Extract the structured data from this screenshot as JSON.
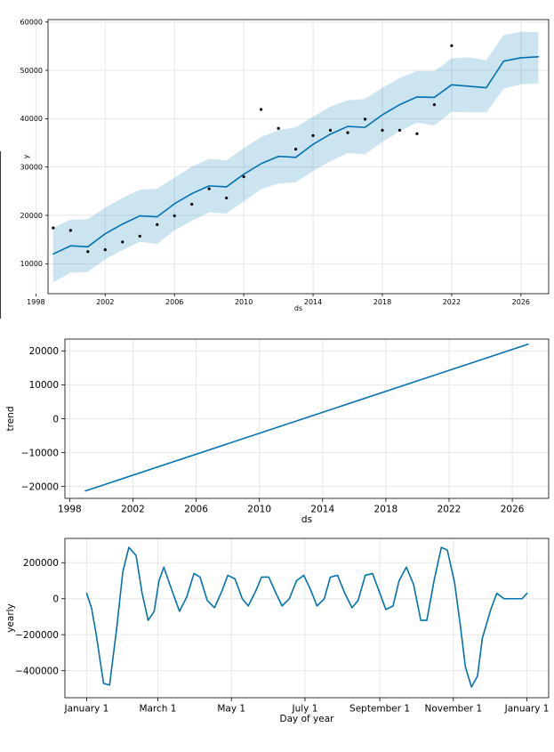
{
  "chart_data": [
    {
      "type": "line",
      "xlabel": "ds",
      "ylabel": "y",
      "xlim": [
        1998.7,
        2027.6
      ],
      "ylim": [
        3800,
        60500
      ],
      "xticks": [
        1998,
        2002,
        2006,
        2010,
        2014,
        2018,
        2022,
        2026
      ],
      "yticks": [
        10000,
        20000,
        30000,
        40000,
        50000,
        60000
      ],
      "xtick_labels": [
        "1998",
        "2002",
        "2006",
        "2010",
        "2014",
        "2018",
        "2022",
        "2026"
      ],
      "ytick_labels": [
        "10000",
        "20000",
        "30000",
        "40000",
        "50000",
        "60000"
      ],
      "grid": true,
      "series": [
        {
          "kind": "forecast",
          "color": "#0072B2",
          "x": [
            1999,
            2000,
            2001,
            2002,
            2003,
            2004,
            2005,
            2006,
            2007,
            2008,
            2009,
            2010,
            2011,
            2012,
            2013,
            2014,
            2015,
            2016,
            2017,
            2018,
            2019,
            2020,
            2021,
            2022,
            2023,
            2024,
            2025,
            2026,
            2027
          ],
          "y": [
            12000,
            13700,
            13500,
            16200,
            18200,
            19900,
            19700,
            22400,
            24500,
            26100,
            25900,
            28500,
            30700,
            32200,
            32000,
            34700,
            36800,
            38400,
            38200,
            40800,
            42900,
            44500,
            44400,
            47000,
            46700,
            46400,
            51900,
            52600,
            52800
          ],
          "lower": [
            6200,
            8100,
            8300,
            10900,
            12800,
            14500,
            14100,
            16900,
            18900,
            20600,
            20400,
            22900,
            25400,
            26600,
            26800,
            29200,
            31200,
            32900,
            32600,
            35200,
            37400,
            39200,
            38600,
            41400,
            41300,
            41300,
            46200,
            47100,
            47300
          ],
          "upper": [
            17400,
            19100,
            19200,
            21600,
            23600,
            25300,
            25500,
            27800,
            30100,
            31700,
            31400,
            33900,
            36200,
            37600,
            38200,
            40400,
            42500,
            43800,
            44100,
            46400,
            48400,
            49900,
            49800,
            52500,
            52700,
            52100,
            57300,
            58000,
            57900
          ],
          "band_color": "#0072B2"
        },
        {
          "kind": "observed",
          "color": "#000000",
          "x": [
            1999,
            2000,
            2001,
            2002,
            2003,
            2004,
            2005,
            2006,
            2007,
            2008,
            2009,
            2010,
            2011,
            2012,
            2013,
            2014,
            2015,
            2016,
            2017,
            2018,
            2019,
            2020,
            2021,
            2022
          ],
          "y": [
            17400,
            16900,
            12500,
            12900,
            14500,
            15700,
            18100,
            19900,
            22300,
            25500,
            23600,
            28000,
            41900,
            38000,
            33700,
            36500,
            37600,
            37100,
            39900,
            37600,
            37600,
            36900,
            42900,
            55100
          ]
        }
      ]
    },
    {
      "type": "line",
      "xlabel": "ds",
      "ylabel": "trend",
      "xlim": [
        1997.7,
        2028.3
      ],
      "ylim": [
        -23500,
        23500
      ],
      "xticks": [
        1998,
        2002,
        2006,
        2010,
        2014,
        2018,
        2022,
        2026
      ],
      "yticks": [
        -20000,
        -10000,
        0,
        10000,
        20000
      ],
      "xtick_labels": [
        "1998",
        "2002",
        "2006",
        "2010",
        "2014",
        "2018",
        "2022",
        "2026"
      ],
      "ytick_labels": [
        "−20000",
        "−10000",
        "0",
        "10000",
        "20000"
      ],
      "grid": true,
      "series": [
        {
          "color": "#0072B2",
          "x": [
            1999,
            2027
          ],
          "y": [
            -21300,
            22000
          ]
        }
      ]
    },
    {
      "type": "line",
      "xlabel": "Day of year",
      "ylabel": "yearly",
      "xlim": [
        -18,
        383
      ],
      "ylim": [
        -550000,
        335000
      ],
      "xticks": [
        0,
        59,
        120,
        181,
        243,
        304,
        365
      ],
      "yticks": [
        -400000,
        -200000,
        0,
        200000
      ],
      "xtick_labels": [
        "January 1",
        "March 1",
        "May 1",
        "July 1",
        "September 1",
        "November 1",
        "January 1"
      ],
      "ytick_labels": [
        "−400000",
        "−200000",
        "0",
        "200000"
      ],
      "grid": true,
      "series": [
        {
          "color": "#0072B2",
          "x": [
            0,
            4,
            8,
            14,
            19,
            25,
            30,
            35,
            41,
            46,
            51,
            56,
            60,
            64,
            71,
            77,
            83,
            89,
            94,
            100,
            106,
            112,
            117,
            123,
            129,
            134,
            140,
            145,
            151,
            157,
            162,
            168,
            174,
            180,
            185,
            191,
            197,
            202,
            208,
            214,
            220,
            225,
            231,
            237,
            242,
            248,
            254,
            259,
            265,
            271,
            277,
            282,
            288,
            294,
            299,
            305,
            310,
            314,
            319,
            324,
            328,
            335,
            340,
            346,
            351,
            357,
            361,
            365
          ],
          "y": [
            30000,
            -50000,
            -200000,
            -470000,
            -480000,
            -160000,
            150000,
            285000,
            240000,
            30000,
            -120000,
            -70000,
            100000,
            175000,
            40000,
            -70000,
            10000,
            140000,
            120000,
            -10000,
            -50000,
            40000,
            130000,
            110000,
            0,
            -40000,
            40000,
            120000,
            120000,
            30000,
            -40000,
            0,
            100000,
            130000,
            60000,
            -40000,
            0,
            120000,
            130000,
            30000,
            -50000,
            -10000,
            130000,
            140000,
            50000,
            -60000,
            -40000,
            100000,
            175000,
            80000,
            -120000,
            -120000,
            100000,
            285000,
            270000,
            90000,
            -160000,
            -380000,
            -490000,
            -430000,
            -220000,
            -60000,
            30000,
            0,
            0,
            0,
            0,
            30000
          ]
        }
      ]
    }
  ]
}
